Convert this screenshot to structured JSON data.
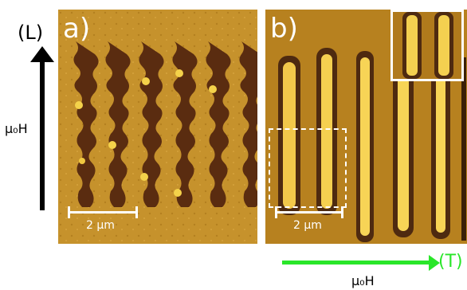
{
  "labels": {
    "longitudinal": "(L)",
    "transverse": "(T)",
    "field_left": "μ₀H",
    "field_bottom": "μ₀H",
    "panel_a": "a)",
    "panel_b": "b)",
    "scale_a": "2 μm",
    "scale_b": "2 μm"
  },
  "colors": {
    "arrow_vertical": "#000000",
    "arrow_horizontal": "#29e629",
    "scalebar": "#ffffff"
  }
}
